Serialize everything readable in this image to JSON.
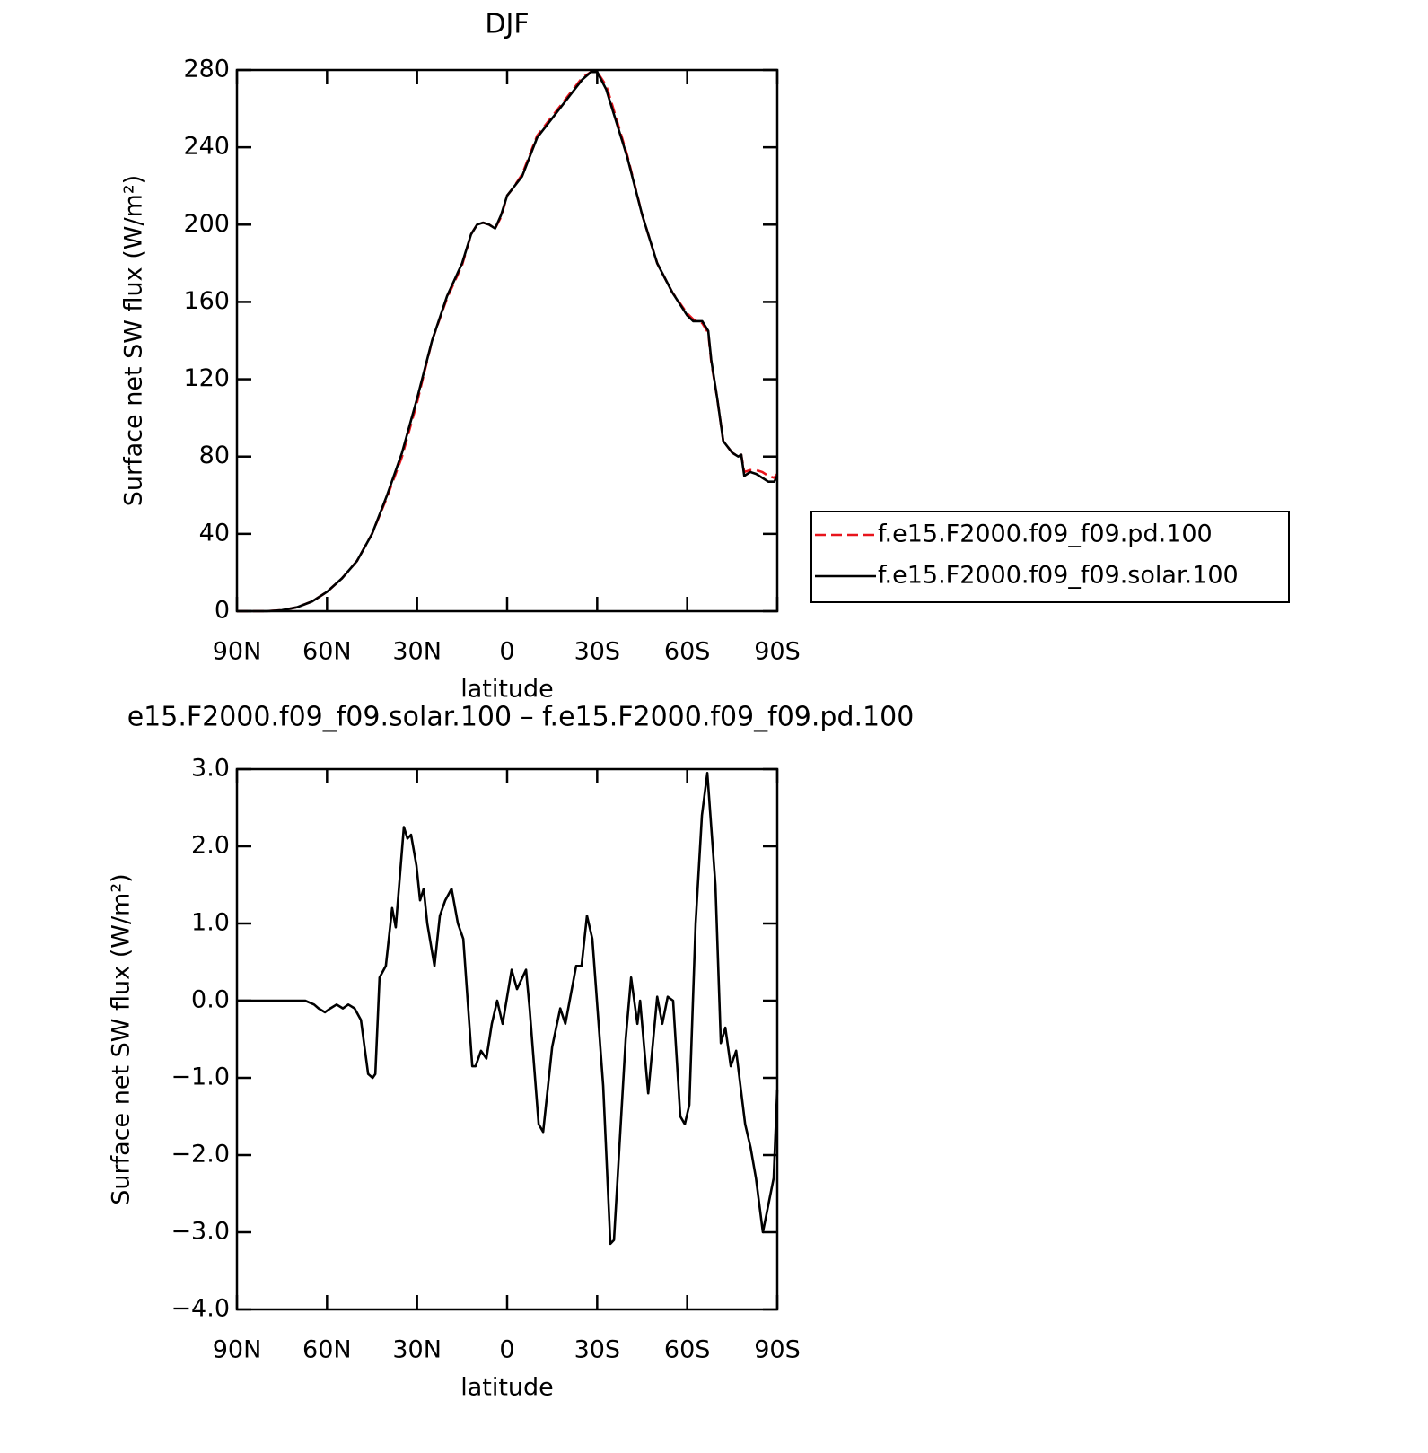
{
  "chart_data": [
    {
      "type": "line",
      "title": "DJF",
      "xlabel": "latitude",
      "ylabel": "Surface net SW flux (W/m²)",
      "x": [
        90,
        85,
        80,
        75,
        70,
        65,
        60,
        55,
        50,
        45,
        40,
        35,
        30,
        25,
        20,
        15,
        12,
        10,
        8,
        6,
        4,
        2,
        0,
        -2,
        -5,
        -10,
        -15,
        -20,
        -25,
        -28,
        -30,
        -33,
        -35,
        -40,
        -45,
        -50,
        -55,
        -60,
        -62,
        -65,
        -67,
        -68,
        -70,
        -72,
        -75,
        -77,
        -78,
        -79,
        -81,
        -83,
        -85,
        -87,
        -89,
        -90
      ],
      "series": [
        {
          "name": "f.e15.F2000.f09_f09.pd.100",
          "color": "#e8141c",
          "dash": true,
          "values": [
            0,
            0,
            0,
            0.5,
            2,
            5,
            10,
            17,
            26,
            40,
            59,
            80,
            108,
            140,
            162,
            179,
            195,
            200,
            201,
            200,
            198,
            204,
            215,
            219,
            226,
            246,
            256,
            266,
            276,
            279,
            279,
            272,
            262,
            236,
            205,
            180,
            165,
            154,
            151,
            149,
            144,
            129,
            110,
            88,
            82,
            80,
            81,
            72,
            73,
            73,
            72,
            70,
            69,
            71
          ]
        },
        {
          "name": "f.e15.F2000.f09_f09.solar.100",
          "color": "#000000",
          "dash": false,
          "values": [
            0,
            0,
            0,
            0.5,
            2,
            5,
            10,
            17,
            26,
            40,
            60,
            82,
            110,
            140,
            163,
            180,
            195,
            200,
            201,
            200,
            198,
            205,
            215,
            219,
            225,
            245,
            255,
            265,
            275,
            279,
            279,
            270,
            260,
            235,
            205,
            180,
            165,
            153,
            150,
            150,
            145,
            130,
            110,
            88,
            82,
            80,
            81,
            70,
            72,
            71,
            69,
            67,
            67,
            70
          ]
        }
      ],
      "xlim": [
        90,
        -90
      ],
      "xticks": [
        {
          "value": 90,
          "label": "90N"
        },
        {
          "value": 60,
          "label": "60N"
        },
        {
          "value": 30,
          "label": "30N"
        },
        0,
        {
          "value": -30,
          "label": "30S"
        },
        {
          "value": -60,
          "label": "60S"
        },
        {
          "value": -90,
          "label": "90S"
        }
      ],
      "ylim": [
        0,
        280
      ],
      "yticks": [
        0,
        40,
        80,
        120,
        160,
        200,
        240,
        280
      ],
      "legend": "outside-right"
    },
    {
      "type": "line",
      "title": "e15.F2000.f09_f09.solar.100 – f.e15.F2000.f09_f09.pd.100",
      "xlabel": "latitude",
      "ylabel": "Surface net SW flux (W/m²)",
      "x": [
        90,
        76.2,
        70.3,
        67.3,
        64.3,
        62.8,
        60.7,
        58.9,
        56.8,
        54.7,
        52.9,
        50.8,
        48.7,
        46.3,
        44.8,
        43.9,
        42.5,
        40.4,
        38.3,
        37.1,
        34.4,
        33.2,
        32,
        30.2,
        29,
        27.8,
        26.6,
        24.2,
        22.4,
        20.6,
        18.5,
        16.4,
        14.6,
        11.6,
        10.5,
        8.7,
        6.9,
        5.1,
        3.3,
        1.5,
        -1.5,
        -3.3,
        -6.3,
        -7.5,
        -10.5,
        -12,
        -15,
        -17.7,
        -19.4,
        -23,
        -24.8,
        -26.6,
        -28.4,
        -32,
        -34.4,
        -35.6,
        -37.4,
        -39.5,
        -41.3,
        -43.4,
        -44.3,
        -47,
        -50,
        -51.7,
        -53.5,
        -55.3,
        -57.7,
        -59.2,
        -60.7,
        -62.8,
        -64.9,
        -66.7,
        -69.4,
        -71.2,
        -72.7,
        -74.5,
        -76.3,
        -79.3,
        -81.1,
        -82.9,
        -85.2,
        -87,
        -88.8,
        -90
      ],
      "series": [
        {
          "color": "#000000",
          "dash": false,
          "values": [
            0,
            0,
            0,
            0,
            -0.05,
            -0.1,
            -0.15,
            -0.1,
            -0.05,
            -0.1,
            -0.05,
            -0.1,
            -0.25,
            -0.95,
            -1.0,
            -0.95,
            0.3,
            0.45,
            1.2,
            0.95,
            2.25,
            2.1,
            2.15,
            1.75,
            1.3,
            1.45,
            1.0,
            0.45,
            1.1,
            1.3,
            1.45,
            1.0,
            0.8,
            -0.85,
            -0.85,
            -0.65,
            -0.75,
            -0.3,
            0.0,
            -0.3,
            0.4,
            0.15,
            0.4,
            -0.1,
            -1.6,
            -1.7,
            -0.6,
            -0.1,
            -0.3,
            0.45,
            0.45,
            1.1,
            0.8,
            -1.1,
            -3.15,
            -3.1,
            -1.9,
            -0.5,
            0.3,
            -0.3,
            0.0,
            -1.2,
            0.05,
            -0.3,
            0.05,
            0.0,
            -1.5,
            -1.6,
            -1.35,
            1.0,
            2.4,
            2.95,
            1.5,
            -0.55,
            -0.35,
            -0.85,
            -0.65,
            -1.6,
            -1.9,
            -2.3,
            -3.0,
            -2.65,
            -2.3,
            -1.15
          ]
        }
      ],
      "xlim": [
        90,
        -90
      ],
      "xticks": [
        {
          "value": 90,
          "label": "90N"
        },
        {
          "value": 60,
          "label": "60N"
        },
        {
          "value": 30,
          "label": "30N"
        },
        0,
        {
          "value": -30,
          "label": "30S"
        },
        {
          "value": -60,
          "label": "60S"
        },
        {
          "value": -90,
          "label": "90S"
        }
      ],
      "ylim": [
        -4,
        3
      ],
      "yticks": [
        {
          "value": -4,
          "label": "−4.0"
        },
        {
          "value": -3,
          "label": "−3.0"
        },
        {
          "value": -2,
          "label": "−2.0"
        },
        {
          "value": -1,
          "label": "−1.0"
        },
        {
          "value": 0,
          "label": "0.0"
        },
        {
          "value": 1,
          "label": "1.0"
        },
        {
          "value": 2,
          "label": "2.0"
        },
        {
          "value": 3,
          "label": "3.0"
        }
      ]
    }
  ]
}
